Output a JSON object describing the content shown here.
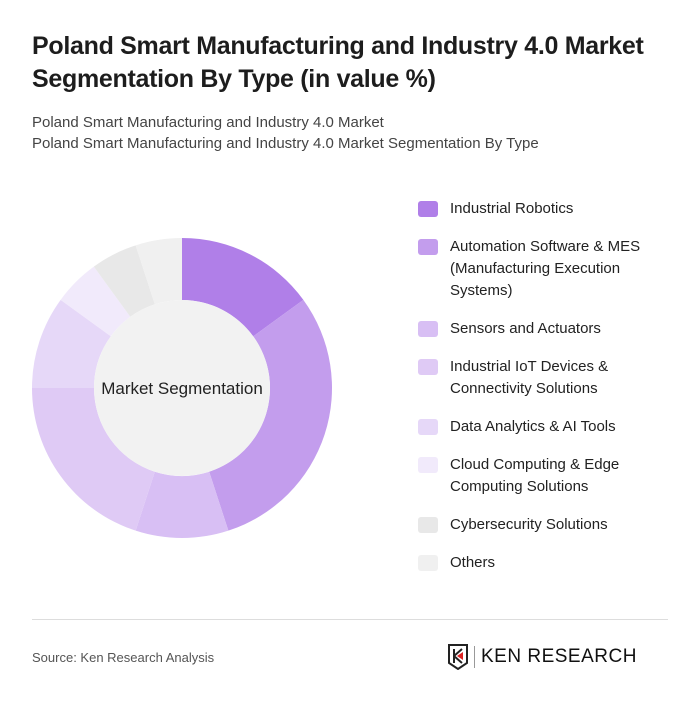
{
  "title": "Poland Smart Manufacturing and Industry 4.0 Market Segmentation By Type (in value %)",
  "subtitle_1": "Poland Smart Manufacturing and Industry 4.0 Market",
  "subtitle_2": "Poland Smart Manufacturing and Industry 4.0 Market Segmentation By Type",
  "source": "Source: Ken Research Analysis",
  "logo_text": "KEN RESEARCH",
  "chart_data": {
    "type": "pie",
    "variant": "donut",
    "center_label": "Market Segmentation",
    "legend_position": "right",
    "categories": [
      "Industrial Robotics",
      "Automation Software & MES (Manufacturing Execution Systems)",
      "Sensors and Actuators",
      "Industrial IoT Devices & Connectivity Solutions",
      "Data Analytics & AI Tools",
      "Cloud Computing & Edge Computing Solutions",
      "Cybersecurity Solutions",
      "Others"
    ],
    "values": [
      15,
      30,
      10,
      20,
      10,
      5,
      5,
      5
    ],
    "colors": [
      "#b07fe8",
      "#c39ded",
      "#d8bff4",
      "#dfcaf5",
      "#e6d8f8",
      "#f1eafb",
      "#e8e8e8",
      "#f0f0f0"
    ]
  }
}
